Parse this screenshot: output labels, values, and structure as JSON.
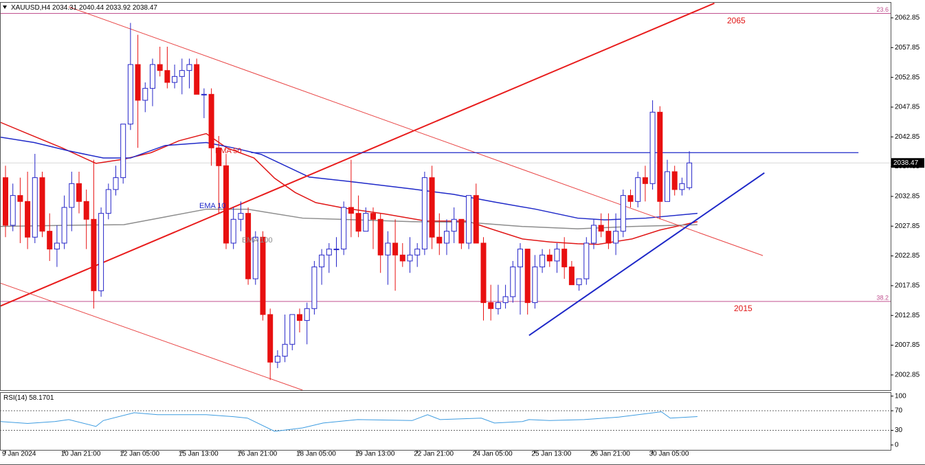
{
  "chart_data": {
    "type": "candlestick",
    "symbol": "XAUUSD,H4",
    "up_color": "#ffffff",
    "up_edge": "#2424c8",
    "down_color": "#e81010",
    "candles": [
      [
        2036,
        2038,
        2026,
        2028
      ],
      [
        2028,
        2035,
        2027,
        2033
      ],
      [
        2033,
        2036,
        2025,
        2032
      ],
      [
        2032,
        2037,
        2024,
        2026
      ],
      [
        2026,
        2040,
        2025,
        2036
      ],
      [
        2036,
        2037,
        2026,
        2027
      ],
      [
        2027,
        2030,
        2022,
        2024
      ],
      [
        2024,
        2028,
        2021,
        2025
      ],
      [
        2025,
        2033,
        2024,
        2031
      ],
      [
        2031,
        2037,
        2027,
        2035
      ],
      [
        2035,
        2037,
        2030,
        2032
      ],
      [
        2032,
        2034,
        2024,
        2029
      ],
      [
        2029,
        2039,
        2014,
        2017
      ],
      [
        2017,
        2031,
        2016,
        2030
      ],
      [
        2030,
        2035,
        2029,
        2034
      ],
      [
        2034,
        2038,
        2033,
        2036
      ],
      [
        2036,
        2045,
        2035,
        2045
      ],
      [
        2045,
        2062,
        2044,
        2055
      ],
      [
        2055,
        2060,
        2041,
        2049
      ],
      [
        2049,
        2052,
        2047,
        2051
      ],
      [
        2051,
        2056,
        2048,
        2055
      ],
      [
        2055,
        2058,
        2053,
        2054
      ],
      [
        2054,
        2058,
        2051,
        2052
      ],
      [
        2052,
        2055,
        2051,
        2053
      ],
      [
        2053,
        2056,
        2050,
        2054
      ],
      [
        2054,
        2056,
        2051,
        2055
      ],
      [
        2055,
        2056,
        2050,
        2050
      ],
      [
        2050,
        2051,
        2046,
        2050
      ],
      [
        2050,
        2051,
        2038,
        2041
      ],
      [
        2041,
        2043,
        2030,
        2038
      ],
      [
        2038,
        2040,
        2024,
        2025
      ],
      [
        2025,
        2031,
        2024,
        2029
      ],
      [
        2029,
        2032,
        2027,
        2030
      ],
      [
        2030,
        2031,
        2018,
        2019
      ],
      [
        2019,
        2027,
        2018,
        2026
      ],
      [
        2026,
        2027,
        2012,
        2013
      ],
      [
        2013,
        2014,
        2002,
        2005
      ],
      [
        2005,
        2007,
        2004,
        2006
      ],
      [
        2006,
        2013,
        2005,
        2008
      ],
      [
        2008,
        2013,
        2007,
        2013
      ],
      [
        2013,
        2014,
        2010,
        2012
      ],
      [
        2012,
        2015,
        2008,
        2014
      ],
      [
        2014,
        2022,
        2013,
        2021
      ],
      [
        2021,
        2024,
        2018,
        2023
      ],
      [
        2023,
        2025,
        2020,
        2024
      ],
      [
        2024,
        2026,
        2021,
        2024
      ],
      [
        2024,
        2032,
        2023,
        2031
      ],
      [
        2031,
        2039,
        2026,
        2030
      ],
      [
        2030,
        2033,
        2026,
        2027
      ],
      [
        2027,
        2031,
        2027,
        2030
      ],
      [
        2030,
        2031,
        2024,
        2029
      ],
      [
        2029,
        2030,
        2020,
        2023
      ],
      [
        2023,
        2027,
        2018,
        2025
      ],
      [
        2025,
        2029,
        2017,
        2023
      ],
      [
        2023,
        2025,
        2021,
        2022
      ],
      [
        2022,
        2026,
        2020,
        2023
      ],
      [
        2023,
        2025,
        2021,
        2024
      ],
      [
        2024,
        2037,
        2023,
        2036
      ],
      [
        2036,
        2038,
        2024,
        2026
      ],
      [
        2026,
        2030,
        2023,
        2025
      ],
      [
        2025,
        2029,
        2023,
        2027
      ],
      [
        2027,
        2031,
        2025,
        2029
      ],
      [
        2029,
        2029,
        2024,
        2025
      ],
      [
        2025,
        2033,
        2024,
        2033
      ],
      [
        2033,
        2035,
        2025,
        2025
      ],
      [
        2025,
        2026,
        2012,
        2015
      ],
      [
        2015,
        2018,
        2012,
        2014
      ],
      [
        2014,
        2018,
        2013,
        2015
      ],
      [
        2015,
        2018,
        2014,
        2016
      ],
      [
        2016,
        2022,
        2015,
        2021
      ],
      [
        2021,
        2025,
        2013,
        2024
      ],
      [
        2024,
        2024,
        2013,
        2015
      ],
      [
        2015,
        2023,
        2014,
        2021
      ],
      [
        2021,
        2024,
        2020,
        2023
      ],
      [
        2023,
        2024,
        2021,
        2022
      ],
      [
        2022,
        2025,
        2020,
        2024
      ],
      [
        2024,
        2026,
        2019,
        2021
      ],
      [
        2021,
        2022,
        2018,
        2018
      ],
      [
        2018,
        2019,
        2017,
        2019
      ],
      [
        2019,
        2026,
        2018,
        2025
      ],
      [
        2025,
        2029,
        2024,
        2028
      ],
      [
        2028,
        2030,
        2026,
        2027
      ],
      [
        2027,
        2030,
        2024,
        2025
      ],
      [
        2025,
        2030,
        2023,
        2027
      ],
      [
        2027,
        2034,
        2026,
        2033
      ],
      [
        2033,
        2034,
        2031,
        2032
      ],
      [
        2032,
        2037,
        2031,
        2036
      ],
      [
        2036,
        2038,
        2032,
        2035
      ],
      [
        2035,
        2049,
        2034,
        2047
      ],
      [
        2047,
        2048,
        2029,
        2032
      ],
      [
        2032,
        2039,
        2032,
        2037
      ],
      [
        2037,
        2038,
        2033,
        2034
      ],
      [
        2034,
        2036,
        2033,
        2035
      ],
      [
        2034.31,
        2040.44,
        2033.92,
        2038.47
      ]
    ],
    "ylim": [
      2000.3,
      2065.5
    ],
    "yticks": [
      2062.85,
      2057.85,
      2052.85,
      2047.85,
      2042.85,
      2037.85,
      2032.85,
      2027.85,
      2022.85,
      2017.85,
      2012.85,
      2007.85,
      2002.85
    ],
    "xticks": [
      {
        "value": 0,
        "label": "9 Jan 2024"
      },
      {
        "value": 8,
        "label": "10 Jan 21:00"
      },
      {
        "value": 16,
        "label": "12 Jan 05:00"
      },
      {
        "value": 24,
        "label": "15 Jan 13:00"
      },
      {
        "value": 32,
        "label": "16 Jan 21:00"
      },
      {
        "value": 40,
        "label": "18 Jan 05:00"
      },
      {
        "value": 48,
        "label": "19 Jan 13:00"
      },
      {
        "value": 56,
        "label": "22 Jan 21:00"
      },
      {
        "value": 64,
        "label": "24 Jan 05:00"
      },
      {
        "value": 72,
        "label": "25 Jan 13:00"
      },
      {
        "value": 80,
        "label": "26 Jan 21:00"
      },
      {
        "value": 88,
        "label": "30 Jan 05:00"
      }
    ],
    "emas": [
      {
        "name": "EMA 10",
        "color": "#e01515",
        "x": [
          -0.7,
          3,
          7.7,
          12.3,
          16.1,
          19.8,
          23.6,
          27.3,
          30.1,
          33.8,
          36.6,
          39.4,
          42.2,
          46,
          51.6,
          57.2,
          62.8,
          66.5,
          70.3,
          74,
          77.8,
          80.6,
          85.2,
          89,
          94.1
        ],
        "values": [
          2045.3,
          2043.4,
          2041.0,
          2038.4,
          2039.1,
          2040.2,
          2042.2,
          2043.4,
          2041.0,
          2039.3,
          2035.9,
          2033.5,
          2031.8,
          2030.9,
          2029.9,
          2028.7,
          2028.7,
          2027.2,
          2025.7,
          2025.2,
          2024.9,
          2024.8,
          2025.7,
          2027.2,
          2028.6
        ]
      },
      {
        "name": "EMA 50",
        "color": "#1e28c8",
        "x": [
          -0.7,
          3.9,
          8.6,
          13.3,
          17,
          21.7,
          27.3,
          31,
          34.8,
          41.3,
          47.9,
          55.3,
          60.9,
          66.5,
          72.1,
          77.8,
          81.5,
          87.1,
          94.1
        ],
        "values": [
          2042.8,
          2041.9,
          2040.5,
          2039.3,
          2039.3,
          2041.4,
          2041.9,
          2041.0,
          2039.9,
          2036.1,
          2035.2,
          2034.1,
          2033.2,
          2031.9,
          2030.7,
          2029.2,
          2028.9,
          2029.2,
          2030.0
        ]
      },
      {
        "name": "EMA 100",
        "color": "#8c8c8c",
        "x": [
          -0.7,
          8.6,
          16.1,
          21.7,
          27.3,
          32.9,
          40.4,
          47.9,
          55.3,
          62.8,
          70.3,
          77.8,
          85.2,
          94.1
        ],
        "values": [
          2027.8,
          2028.0,
          2028.1,
          2029.4,
          2030.7,
          2030.7,
          2029.2,
          2028.9,
          2028.6,
          2028.5,
          2027.8,
          2027.4,
          2027.8,
          2028.1
        ]
      }
    ],
    "lines": [
      {
        "color": "#e81c1c",
        "width": 2,
        "x": [
          -0.75,
          96.4
        ],
        "values": [
          2014.4,
          2065.3
        ]
      },
      {
        "color": "#e84040",
        "width": 1,
        "x": [
          8.6,
          103
        ],
        "values": [
          2064.7,
          2022.9
        ]
      },
      {
        "color": "#e84040",
        "width": 1,
        "x": [
          -0.75,
          40.4
        ],
        "values": [
          2018.3,
          2000.3
        ]
      },
      {
        "color": "#1e28c8",
        "width": 2,
        "x": [
          71.2,
          103.2
        ],
        "values": [
          2009.5,
          2036.8
        ]
      },
      {
        "color": "#1e28c8",
        "width": 1.3,
        "x": [
          33.4,
          116
        ],
        "values": [
          2040.2,
          2040.2
        ]
      }
    ],
    "levels": [
      {
        "label": "23.6",
        "value": 2063.6,
        "color": "#c0508f"
      },
      {
        "label": "38.2",
        "value": 2015.2,
        "color": "#c0508f"
      }
    ],
    "annotations": [
      "2065",
      "2015"
    ],
    "rsi": {
      "title": "RSI(14)",
      "color": "#3c9be0",
      "x": [
        -0.7,
        3,
        6.7,
        8.6,
        12.3,
        13.3,
        17.5,
        20.7,
        27.3,
        31,
        32.9,
        36.6,
        40.4,
        43.2,
        47.9,
        55.3,
        57.4,
        59.1,
        64.7,
        66.5,
        70.3,
        71.2,
        74,
        78.7,
        83.4,
        89.2,
        90.4,
        94.1
      ],
      "values": [
        48,
        44,
        48,
        52,
        38,
        50,
        66,
        62,
        62,
        58,
        55,
        28,
        35,
        45,
        52,
        50,
        62,
        52,
        55,
        45,
        48,
        52,
        50,
        52,
        57,
        68,
        55,
        58.1701
      ],
      "ylim": [
        -10,
        108
      ],
      "yticks": [
        100,
        70,
        30,
        0
      ]
    }
  }
}
